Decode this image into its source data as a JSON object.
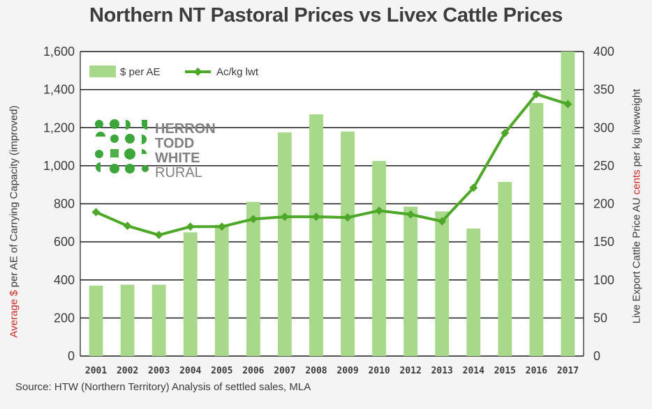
{
  "title": "Northern NT Pastoral  Prices vs Livex Cattle Prices",
  "source": "Source:  HTW (Northern Territory)  Analysis  of  settled sales, MLA",
  "ylabel_left": {
    "red_part": "Average $",
    "rest": " per AE of Carrying Capacity (improved)"
  },
  "ylabel_right": {
    "before": "Live Export Cattle Price AU ",
    "red_part": "cents",
    "after": " per kg liveweight"
  },
  "logo": {
    "lines": [
      "HERRON",
      "TODD",
      "WHITE",
      "RURAL"
    ],
    "color_dots": "#3da63a",
    "color_text": "#7f7f7f"
  },
  "colors": {
    "bar": "#a8d88a",
    "line": "#4fa72a",
    "grid": "#1a1a1a",
    "text": "#3a3a3a",
    "accent_red": "#cc2a2a"
  },
  "chart_data": {
    "type": "bar",
    "categories": [
      "2001",
      "2002",
      "2003",
      "2004",
      "2005",
      "2006",
      "2007",
      "2008",
      "2009",
      "2010",
      "2012",
      "2013",
      "2014",
      "2015",
      "2016",
      "2017"
    ],
    "series": [
      {
        "name": "$ per AE",
        "type": "bar",
        "axis": "left",
        "values": [
          370,
          375,
          375,
          650,
          690,
          810,
          1175,
          1270,
          1180,
          1025,
          785,
          760,
          670,
          915,
          1330,
          1600
        ]
      },
      {
        "name": "Ac/kg lwt",
        "type": "line",
        "axis": "right",
        "values": [
          189,
          171,
          159,
          170,
          170,
          180,
          183,
          183,
          182,
          191,
          186,
          177,
          221,
          293,
          344,
          331
        ]
      }
    ],
    "ylim_left": [
      0,
      1600
    ],
    "yticks_left": [
      "0",
      "200",
      "400",
      "600",
      "800",
      "1,000",
      "1,200",
      "1,400",
      "1,600"
    ],
    "ylim_right": [
      0,
      400
    ],
    "yticks_right": [
      "0",
      "50",
      "100",
      "150",
      "200",
      "250",
      "300",
      "350",
      "400"
    ],
    "grid": true,
    "legend_position": "top-left"
  }
}
